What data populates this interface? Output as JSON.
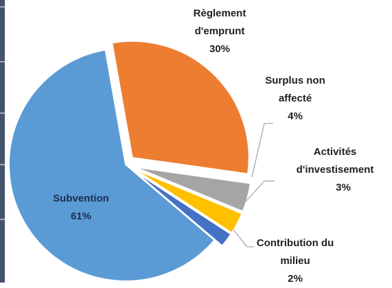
{
  "chart_data": {
    "type": "pie",
    "categories": [
      "Règlement d'emprunt",
      "Surplus non affecté",
      "Activités d'investisement",
      "Contribution du milieu",
      "Subvention"
    ],
    "values": [
      30,
      4,
      3,
      2,
      61
    ],
    "value_labels": [
      "30%",
      "4%",
      "3%",
      "2%",
      "61%"
    ],
    "colors": [
      "#ed7d31",
      "#a5a5a5",
      "#ffc000",
      "#4472c4",
      "#5b9bd5"
    ]
  }
}
